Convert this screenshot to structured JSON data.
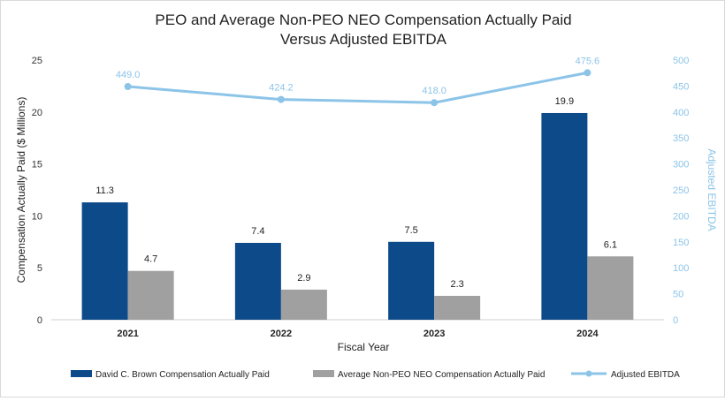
{
  "chart_data": {
    "type": "bar",
    "title_line1": "PEO and Average Non-PEO NEO Compensation Actually Paid",
    "title_line2": "Versus Adjusted EBITDA",
    "categories": [
      "2021",
      "2022",
      "2023",
      "2024"
    ],
    "xlabel": "Fiscal Year",
    "ylabel": "Compensation Actually Paid ($ Millions)",
    "ylabel_right": "Adjusted EBITDA",
    "ylim": [
      0,
      25
    ],
    "yticks": [
      "0",
      "5",
      "10",
      "15",
      "20",
      "25"
    ],
    "ylim_right": [
      0,
      500
    ],
    "yticks_right": [
      "0",
      "50",
      "100",
      "150",
      "200",
      "250",
      "300",
      "350",
      "400",
      "450",
      "500"
    ],
    "series": [
      {
        "name": "David C. Brown Compensation Actually Paid",
        "kind": "bar",
        "axis": "left",
        "color": "#0d4a8a",
        "values": [
          11.3,
          7.4,
          7.5,
          19.9
        ],
        "labels": [
          "11.3",
          "7.4",
          "7.5",
          "19.9"
        ]
      },
      {
        "name": "Average Non-PEO NEO Compensation Actually Paid",
        "kind": "bar",
        "axis": "left",
        "color": "#a0a0a0",
        "values": [
          4.7,
          2.9,
          2.3,
          6.1
        ],
        "labels": [
          "4.7",
          "2.9",
          "2.3",
          "6.1"
        ]
      },
      {
        "name": "Adjusted EBITDA",
        "kind": "line",
        "axis": "right",
        "color": "#8cc4e8",
        "values": [
          449.0,
          424.2,
          418.0,
          475.6
        ],
        "labels": [
          "449.0",
          "424.2",
          "418.0",
          "475.6"
        ]
      }
    ],
    "legend_position": "bottom"
  }
}
